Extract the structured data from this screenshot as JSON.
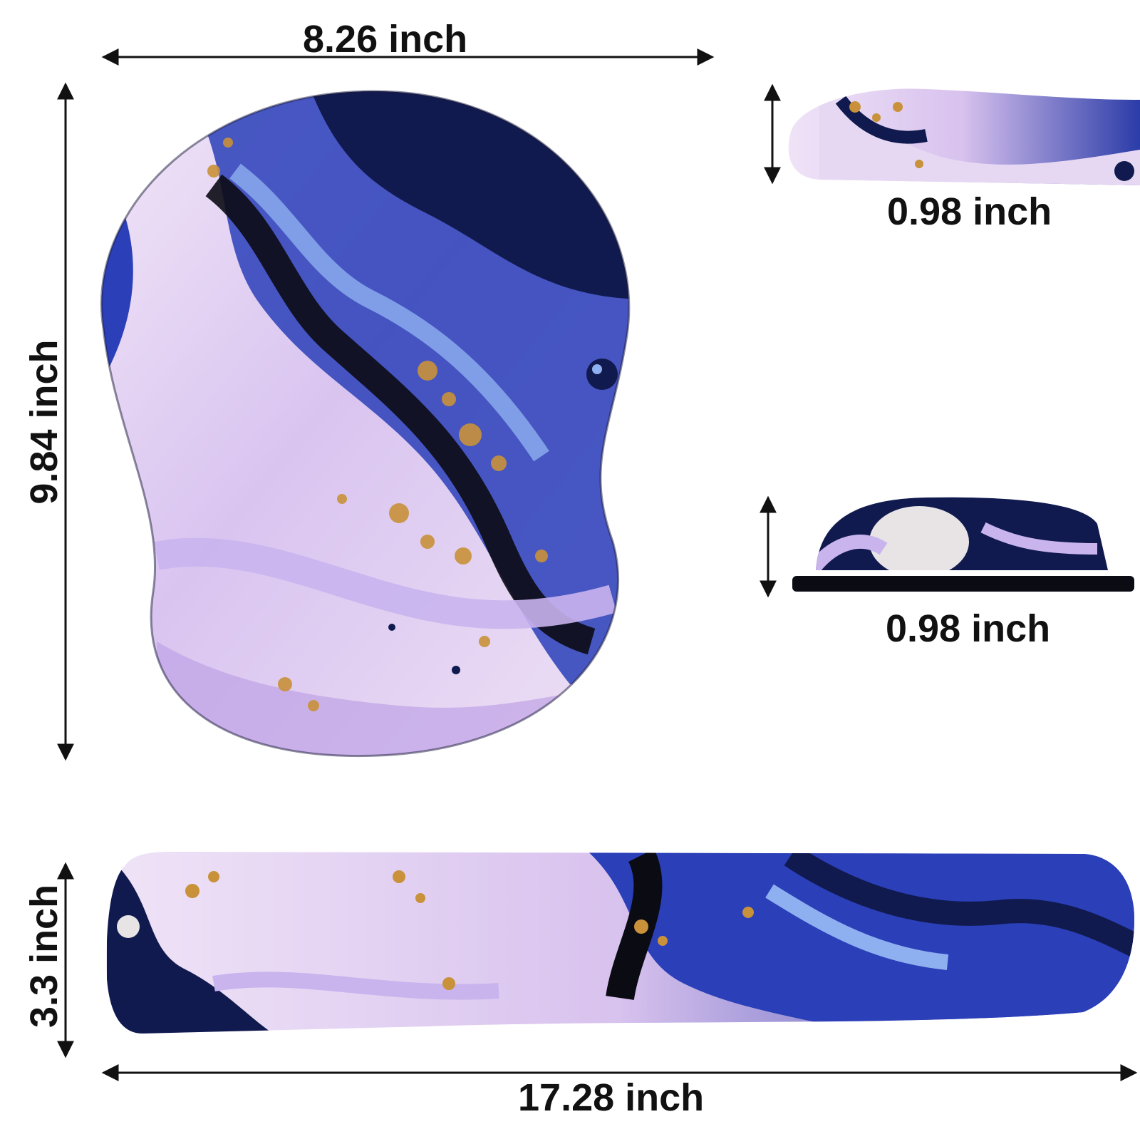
{
  "dimensions": {
    "pad_width": "8.26 inch",
    "pad_height": "9.84 inch",
    "pad_thickness": "0.98 inch",
    "rest_thickness": "0.98 inch",
    "rest_height": "3.3 inch",
    "rest_length": "17.28 inch"
  },
  "colors": {
    "navy": "#101a4e",
    "royal_blue": "#2a3fb8",
    "light_blue": "#8fb0f0",
    "lavender": "#c9b4ee",
    "pale_pink": "#f2e6f7",
    "gold": "#c8913a",
    "black": "#0b0b14"
  }
}
